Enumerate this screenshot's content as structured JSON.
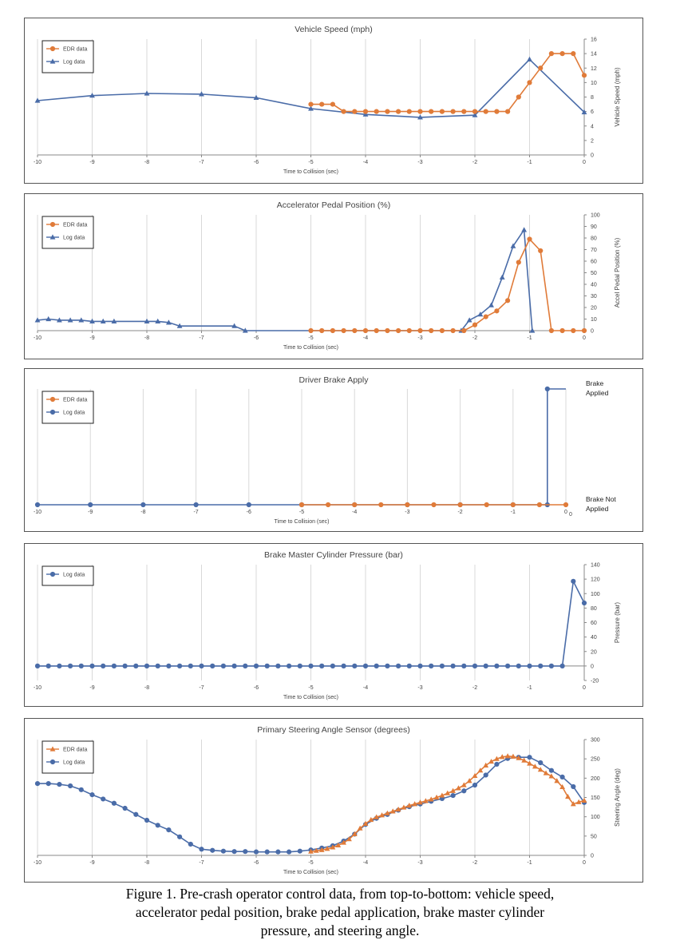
{
  "colors": {
    "edr": "#E07B39",
    "log": "#4A6CA8",
    "grid": "#d9d9d9",
    "axis": "#888888",
    "text": "#444444"
  },
  "chart_data": [
    {
      "type": "line",
      "title": "Vehicle Speed (mph)",
      "xlabel": "Time to Collision (sec)",
      "ylabel": "Vehicle Speed (mph)",
      "xlim": [
        -10,
        0
      ],
      "xticks": [
        -10,
        -9,
        -8,
        -7,
        -6,
        -5,
        -4,
        -3,
        -2,
        -1,
        0
      ],
      "ylim": [
        0,
        16
      ],
      "yticks": [
        0,
        2,
        4,
        6,
        8,
        10,
        12,
        14,
        16
      ],
      "grid": "vertical",
      "legend": "top-left",
      "series": [
        {
          "name": "EDR data",
          "marker": "circle",
          "color": "#E07B39",
          "x": [
            -5,
            -4.8,
            -4.6,
            -4.4,
            -4.2,
            -4,
            -3.8,
            -3.6,
            -3.4,
            -3.2,
            -3,
            -2.8,
            -2.6,
            -2.4,
            -2.2,
            -2,
            -1.8,
            -1.6,
            -1.4,
            -1.2,
            -1,
            -0.8,
            -0.6,
            -0.4,
            -0.2,
            0
          ],
          "y": [
            7,
            7,
            7,
            6,
            6,
            6,
            6,
            6,
            6,
            6,
            6,
            6,
            6,
            6,
            6,
            6,
            6,
            6,
            6,
            8,
            10,
            12,
            14,
            14,
            14,
            11
          ]
        },
        {
          "name": "Log data",
          "marker": "triangle",
          "color": "#4A6CA8",
          "x": [
            -10,
            -9,
            -8,
            -7,
            -6,
            -5,
            -4,
            -3,
            -2,
            -1,
            0
          ],
          "y": [
            7.5,
            8.2,
            8.5,
            8.4,
            7.9,
            6.4,
            5.6,
            5.2,
            5.5,
            13.2,
            5.9
          ]
        }
      ]
    },
    {
      "type": "line",
      "title": "Accelerator Pedal Position (%)",
      "xlabel": "Time to Collision (sec)",
      "ylabel": "Accel Pedal Position (%)",
      "xlim": [
        -10,
        0
      ],
      "xticks": [
        -10,
        -9,
        -8,
        -7,
        -6,
        -5,
        -4,
        -3,
        -2,
        -1,
        0
      ],
      "ylim": [
        0,
        100
      ],
      "yticks": [
        0,
        10,
        20,
        30,
        40,
        50,
        60,
        70,
        80,
        90,
        100
      ],
      "grid": "vertical",
      "legend": "top-left",
      "series": [
        {
          "name": "EDR data",
          "marker": "circle",
          "color": "#E07B39",
          "x": [
            -5,
            -4.8,
            -4.6,
            -4.4,
            -4.2,
            -4,
            -3.8,
            -3.6,
            -3.4,
            -3.2,
            -3,
            -2.8,
            -2.6,
            -2.4,
            -2.2,
            -2,
            -1.8,
            -1.6,
            -1.4,
            -1.2,
            -1,
            -0.8,
            -0.6,
            -0.4,
            -0.2,
            0
          ],
          "y": [
            0,
            0,
            0,
            0,
            0,
            0,
            0,
            0,
            0,
            0,
            0,
            0,
            0,
            0,
            0,
            5,
            12,
            17,
            26,
            59,
            79,
            69,
            0,
            0,
            0,
            0
          ]
        },
        {
          "name": "Log data",
          "marker": "triangle",
          "color": "#4A6CA8",
          "x": [
            -10,
            -9.8,
            -9.6,
            -9.4,
            -9.2,
            -9,
            -8.8,
            -8.6,
            -8,
            -7.8,
            -7.6,
            -7.4,
            -6.4,
            -6.2,
            -2.25,
            -2.1,
            -1.9,
            -1.7,
            -1.5,
            -1.3,
            -1.1,
            -0.95
          ],
          "y": [
            9,
            10,
            9,
            9,
            9,
            8,
            8,
            8,
            8,
            8,
            7,
            4,
            4,
            0,
            0,
            9,
            14,
            22,
            46,
            73,
            87,
            0
          ]
        }
      ]
    },
    {
      "type": "line",
      "title": "Driver Brake Apply",
      "xlabel": "Time to Collision (sec)",
      "xlim": [
        -10,
        0
      ],
      "xticks": [
        -10,
        -9,
        -8,
        -7,
        -6,
        -5,
        -4,
        -3,
        -2,
        -1,
        0
      ],
      "ylim": [
        0,
        1
      ],
      "ystate_top": [
        "Brake",
        "Applied"
      ],
      "ystate_bottom": [
        "Brake Not",
        "Applied"
      ],
      "grid": "vertical",
      "legend": "top-left",
      "series": [
        {
          "name": "EDR data",
          "marker": "circle",
          "color": "#E07B39",
          "x": [
            -5,
            -4.5,
            -4,
            -3.5,
            -3,
            -2.5,
            -2,
            -1.5,
            -1,
            -0.5,
            0
          ],
          "y": [
            0,
            0,
            0,
            0,
            0,
            0,
            0,
            0,
            0,
            0,
            0
          ]
        },
        {
          "name": "Log data",
          "marker": "circle",
          "color": "#4A6CA8",
          "x": [
            -10,
            -9,
            -8,
            -7,
            -6,
            -5,
            -4,
            -3,
            -2,
            -1,
            -0.35,
            -0.35,
            0
          ],
          "y": [
            0,
            0,
            0,
            0,
            0,
            0,
            0,
            0,
            0,
            0,
            0,
            1,
            1
          ]
        }
      ]
    },
    {
      "type": "line",
      "title": "Brake Master Cylinder Pressure (bar)",
      "xlabel": "Time to Collision (sec)",
      "ylabel": "Pressure (bar)",
      "xlim": [
        -10,
        0
      ],
      "xticks": [
        -10,
        -9,
        -8,
        -7,
        -6,
        -5,
        -4,
        -3,
        -2,
        -1,
        0
      ],
      "ylim": [
        -20,
        140
      ],
      "yticks": [
        -20,
        0,
        20,
        40,
        60,
        80,
        100,
        120,
        140
      ],
      "grid": "vertical",
      "legend": "top-left",
      "series": [
        {
          "name": "Log data",
          "marker": "circle",
          "color": "#4A6CA8",
          "x": [
            -10,
            -9.8,
            -9.6,
            -9.4,
            -9.2,
            -9,
            -8.8,
            -8.6,
            -8.4,
            -8.2,
            -8,
            -7.8,
            -7.6,
            -7.4,
            -7.2,
            -7,
            -6.8,
            -6.6,
            -6.4,
            -6.2,
            -6,
            -5.8,
            -5.6,
            -5.4,
            -5.2,
            -5,
            -4.8,
            -4.6,
            -4.4,
            -4.2,
            -4,
            -3.8,
            -3.6,
            -3.4,
            -3.2,
            -3,
            -2.8,
            -2.6,
            -2.4,
            -2.2,
            -2,
            -1.8,
            -1.6,
            -1.4,
            -1.2,
            -1,
            -0.8,
            -0.6,
            -0.4,
            -0.2,
            0
          ],
          "y": [
            0,
            0,
            0,
            0,
            0,
            0,
            0,
            0,
            0,
            0,
            0,
            0,
            0,
            0,
            0,
            0,
            0,
            0,
            0,
            0,
            0,
            0,
            0,
            0,
            0,
            0,
            0,
            0,
            0,
            0,
            0,
            0,
            0,
            0,
            0,
            0,
            0,
            0,
            0,
            0,
            0,
            0,
            0,
            0,
            0,
            0,
            0,
            0,
            0,
            117,
            87
          ]
        }
      ]
    },
    {
      "type": "line",
      "title": "Primary Steering Angle Sensor (degrees)",
      "xlabel": "Time to Collision (sec)",
      "ylabel": "Steering Angle (deg)",
      "xlim": [
        -10,
        0
      ],
      "xticks": [
        -10,
        -9,
        -8,
        -7,
        -6,
        -5,
        -4,
        -3,
        -2,
        -1,
        0
      ],
      "ylim": [
        0,
        300
      ],
      "yticks": [
        0,
        50,
        100,
        150,
        200,
        250,
        300
      ],
      "grid": "vertical",
      "legend": "top-left",
      "series": [
        {
          "name": "EDR data",
          "marker": "triangle",
          "color": "#E07B39",
          "x": [
            -5,
            -4.9,
            -4.8,
            -4.7,
            -4.6,
            -4.5,
            -4.4,
            -4.3,
            -4.2,
            -4.1,
            -4,
            -3.9,
            -3.8,
            -3.7,
            -3.6,
            -3.5,
            -3.4,
            -3.3,
            -3.2,
            -3.1,
            -3,
            -2.9,
            -2.8,
            -2.7,
            -2.6,
            -2.5,
            -2.4,
            -2.3,
            -2.2,
            -2.1,
            -2,
            -1.9,
            -1.8,
            -1.7,
            -1.6,
            -1.5,
            -1.4,
            -1.3,
            -1.2,
            -1.1,
            -1,
            -0.9,
            -0.8,
            -0.7,
            -0.6,
            -0.5,
            -0.4,
            -0.3,
            -0.2,
            -0.1,
            0
          ],
          "y": [
            10,
            12,
            14,
            17,
            21,
            26,
            33,
            42,
            55,
            70,
            82,
            92,
            99,
            104,
            109,
            114,
            119,
            124,
            129,
            133,
            137,
            141,
            145,
            150,
            155,
            161,
            167,
            174,
            182,
            193,
            206,
            220,
            233,
            243,
            250,
            255,
            257,
            256,
            252,
            246,
            238,
            230,
            222,
            213,
            205,
            193,
            177,
            152,
            133,
            138,
            142
          ]
        },
        {
          "name": "Log data",
          "marker": "circle",
          "color": "#4A6CA8",
          "x": [
            -10,
            -9.8,
            -9.6,
            -9.4,
            -9.2,
            -9,
            -8.8,
            -8.6,
            -8.4,
            -8.2,
            -8,
            -7.8,
            -7.6,
            -7.4,
            -7.2,
            -7,
            -6.8,
            -6.6,
            -6.4,
            -6.2,
            -6,
            -5.8,
            -5.6,
            -5.4,
            -5.2,
            -5,
            -4.8,
            -4.6,
            -4.4,
            -4.2,
            -4,
            -3.8,
            -3.6,
            -3.4,
            -3.2,
            -3,
            -2.8,
            -2.6,
            -2.4,
            -2.2,
            -2,
            -1.8,
            -1.6,
            -1.4,
            -1.2,
            -1,
            -0.8,
            -0.6,
            -0.4,
            -0.2,
            0
          ],
          "y": [
            186,
            186,
            184,
            180,
            170,
            157,
            146,
            135,
            122,
            106,
            91,
            78,
            66,
            48,
            29,
            16,
            13,
            11,
            10,
            10,
            9,
            9,
            9,
            9,
            11,
            14,
            19,
            25,
            37,
            55,
            80,
            96,
            106,
            117,
            126,
            133,
            140,
            147,
            155,
            167,
            182,
            208,
            236,
            251,
            254,
            254,
            240,
            220,
            203,
            178,
            137
          ]
        }
      ]
    }
  ],
  "caption": [
    "Figure 1. Pre-crash operator control data, from top-to-bottom: vehicle speed,",
    "accelerator pedal position, brake pedal application, brake master cylinder",
    "pressure, and steering angle."
  ]
}
